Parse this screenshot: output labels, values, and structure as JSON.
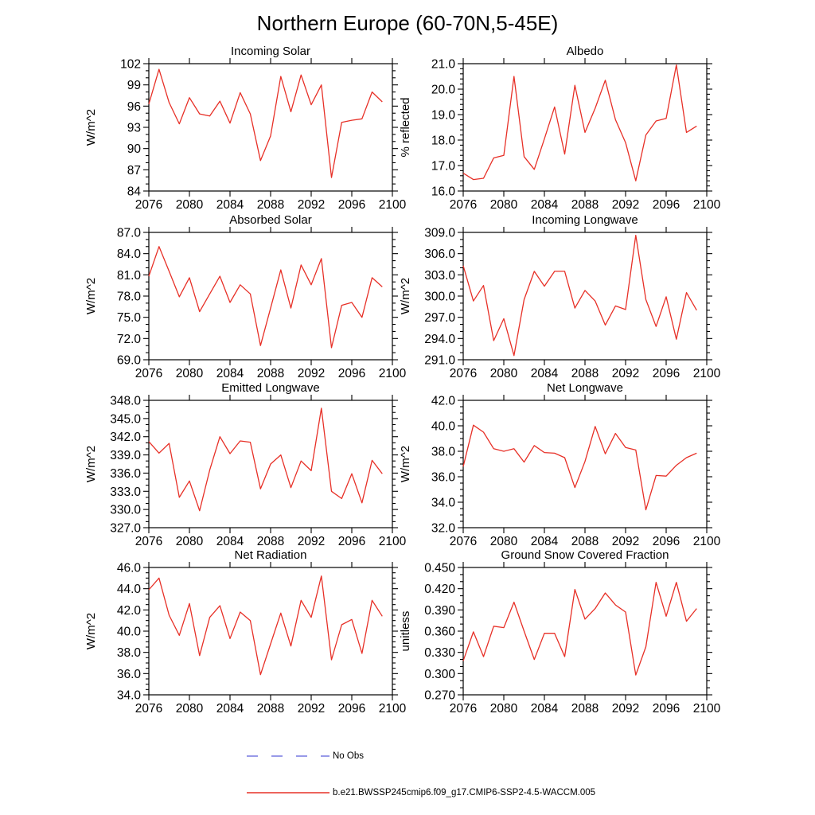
{
  "page_title": "Northern Europe (60-70N,5-45E)",
  "style": {
    "line_color": "#e73027",
    "no_obs_color": "#7678e0",
    "axis_color": "#000000",
    "background": "#ffffff"
  },
  "legend": {
    "entries": [
      {
        "label": "No Obs",
        "color": "#7678e0",
        "line_style": "dashed"
      },
      {
        "label": "b.e21.BWSSP245cmip6.f09_g17.CMIP6-SSP2-4.5-WACCM.005",
        "color": "#e73027",
        "line_style": "solid"
      }
    ]
  },
  "chart_data": [
    {
      "type": "line",
      "title": "Incoming Solar",
      "ylabel": "W/m^2",
      "xlim": [
        2076,
        2100
      ],
      "xticks": [
        2076,
        2080,
        2084,
        2088,
        2092,
        2096,
        2100
      ],
      "ylim": [
        84,
        102
      ],
      "ystep": 3,
      "ydecimals": 0,
      "yminor_divisions": 3,
      "x": [
        2076,
        2077,
        2078,
        2079,
        2080,
        2081,
        2082,
        2083,
        2084,
        2085,
        2086,
        2087,
        2088,
        2089,
        2090,
        2091,
        2092,
        2093,
        2094,
        2095,
        2096,
        2097,
        2098,
        2099
      ],
      "values": [
        96.3,
        101.2,
        96.5,
        93.5,
        97.2,
        94.9,
        94.6,
        96.7,
        93.6,
        97.9,
        94.9,
        88.3,
        91.8,
        100.2,
        95.2,
        100.4,
        96.2,
        99.0,
        85.9,
        93.7,
        94.0,
        94.2,
        98.0,
        96.6
      ]
    },
    {
      "type": "line",
      "title": "Albedo",
      "ylabel": "% reflected",
      "xlim": [
        2076,
        2100
      ],
      "xticks": [
        2076,
        2080,
        2084,
        2088,
        2092,
        2096,
        2100
      ],
      "ylim": [
        16.0,
        21.0
      ],
      "ystep": 1,
      "ydecimals": 1,
      "yminor_divisions": 5,
      "x": [
        2076,
        2077,
        2078,
        2079,
        2080,
        2081,
        2082,
        2083,
        2084,
        2085,
        2086,
        2087,
        2088,
        2089,
        2090,
        2091,
        2092,
        2093,
        2094,
        2095,
        2096,
        2097,
        2098,
        2099
      ],
      "values": [
        16.7,
        16.45,
        16.5,
        17.3,
        17.4,
        20.5,
        17.35,
        16.85,
        18.05,
        19.3,
        17.45,
        20.15,
        18.3,
        19.25,
        20.35,
        18.8,
        17.9,
        16.4,
        18.2,
        18.75,
        18.85,
        20.95,
        18.3,
        18.55
      ]
    },
    {
      "type": "line",
      "title": "Absorbed Solar",
      "ylabel": "W/m^2",
      "xlim": [
        2076,
        2100
      ],
      "xticks": [
        2076,
        2080,
        2084,
        2088,
        2092,
        2096,
        2100
      ],
      "ylim": [
        69.0,
        87.0
      ],
      "ystep": 3,
      "ydecimals": 1,
      "yminor_divisions": 3,
      "x": [
        2076,
        2077,
        2078,
        2079,
        2080,
        2081,
        2082,
        2083,
        2084,
        2085,
        2086,
        2087,
        2088,
        2089,
        2090,
        2091,
        2092,
        2093,
        2094,
        2095,
        2096,
        2097,
        2098,
        2099
      ],
      "values": [
        80.8,
        85.0,
        81.5,
        77.9,
        80.6,
        75.8,
        78.3,
        80.8,
        77.1,
        79.6,
        78.3,
        71.0,
        76.3,
        81.7,
        76.3,
        82.4,
        79.6,
        83.3,
        70.7,
        76.7,
        77.1,
        75.0,
        80.6,
        79.3
      ]
    },
    {
      "type": "line",
      "title": "Incoming Longwave",
      "ylabel": "W/m^2",
      "xlim": [
        2076,
        2100
      ],
      "xticks": [
        2076,
        2080,
        2084,
        2088,
        2092,
        2096,
        2100
      ],
      "ylim": [
        291.0,
        309.0
      ],
      "ystep": 3,
      "ydecimals": 1,
      "yminor_divisions": 3,
      "x": [
        2076,
        2077,
        2078,
        2079,
        2080,
        2081,
        2082,
        2083,
        2084,
        2085,
        2086,
        2087,
        2088,
        2089,
        2090,
        2091,
        2092,
        2093,
        2094,
        2095,
        2096,
        2097,
        2098,
        2099
      ],
      "values": [
        304.3,
        299.3,
        301.5,
        293.7,
        296.8,
        291.6,
        299.5,
        303.5,
        301.4,
        303.5,
        303.5,
        298.3,
        300.8,
        299.3,
        295.9,
        298.6,
        298.1,
        308.6,
        299.5,
        295.7,
        299.9,
        293.9,
        300.5,
        298.0
      ]
    },
    {
      "type": "line",
      "title": "Emitted Longwave",
      "ylabel": "W/m^2",
      "xlim": [
        2076,
        2100
      ],
      "xticks": [
        2076,
        2080,
        2084,
        2088,
        2092,
        2096,
        2100
      ],
      "ylim": [
        327.0,
        348.0
      ],
      "ystep": 3,
      "ydecimals": 1,
      "yminor_divisions": 3,
      "x": [
        2076,
        2077,
        2078,
        2079,
        2080,
        2081,
        2082,
        2083,
        2084,
        2085,
        2086,
        2087,
        2088,
        2089,
        2090,
        2091,
        2092,
        2093,
        2094,
        2095,
        2096,
        2097,
        2098,
        2099
      ],
      "values": [
        341.2,
        339.3,
        340.9,
        332.0,
        334.7,
        329.8,
        336.5,
        342.0,
        339.2,
        341.3,
        341.1,
        333.4,
        337.5,
        339.0,
        333.6,
        338.0,
        336.4,
        346.7,
        333.0,
        331.8,
        335.9,
        331.1,
        338.1,
        335.9
      ]
    },
    {
      "type": "line",
      "title": "Net Longwave",
      "ylabel": "W/m^2",
      "xlim": [
        2076,
        2100
      ],
      "xticks": [
        2076,
        2080,
        2084,
        2088,
        2092,
        2096,
        2100
      ],
      "ylim": [
        32.0,
        42.0
      ],
      "ystep": 2,
      "ydecimals": 1,
      "yminor_divisions": 4,
      "x": [
        2076,
        2077,
        2078,
        2079,
        2080,
        2081,
        2082,
        2083,
        2084,
        2085,
        2086,
        2087,
        2088,
        2089,
        2090,
        2091,
        2092,
        2093,
        2094,
        2095,
        2096,
        2097,
        2098,
        2099
      ],
      "values": [
        36.8,
        40.05,
        39.5,
        38.2,
        38.0,
        38.2,
        37.15,
        38.45,
        37.9,
        37.85,
        37.5,
        35.15,
        37.2,
        39.95,
        37.8,
        39.4,
        38.3,
        38.1,
        33.4,
        36.1,
        36.05,
        36.9,
        37.5,
        37.85
      ]
    },
    {
      "type": "line",
      "title": "Net Radiation",
      "ylabel": "W/m^2",
      "xlim": [
        2076,
        2100
      ],
      "xticks": [
        2076,
        2080,
        2084,
        2088,
        2092,
        2096,
        2100
      ],
      "ylim": [
        34.0,
        46.0
      ],
      "ystep": 2,
      "ydecimals": 1,
      "yminor_divisions": 4,
      "x": [
        2076,
        2077,
        2078,
        2079,
        2080,
        2081,
        2082,
        2083,
        2084,
        2085,
        2086,
        2087,
        2088,
        2089,
        2090,
        2091,
        2092,
        2093,
        2094,
        2095,
        2096,
        2097,
        2098,
        2099
      ],
      "values": [
        43.9,
        45.0,
        41.5,
        39.6,
        42.6,
        37.7,
        41.3,
        42.4,
        39.3,
        41.8,
        41.0,
        35.9,
        38.8,
        41.7,
        38.6,
        42.9,
        41.3,
        45.2,
        37.3,
        40.6,
        41.1,
        37.9,
        42.9,
        41.4
      ]
    },
    {
      "type": "line",
      "title": "Ground Snow Covered Fraction",
      "ylabel": "unitless",
      "xlim": [
        2076,
        2100
      ],
      "xticks": [
        2076,
        2080,
        2084,
        2088,
        2092,
        2096,
        2100
      ],
      "ylim": [
        0.27,
        0.45
      ],
      "ystep": 0.03,
      "ydecimals": 3,
      "yminor_divisions": 3,
      "x": [
        2076,
        2077,
        2078,
        2079,
        2080,
        2081,
        2082,
        2083,
        2084,
        2085,
        2086,
        2087,
        2088,
        2089,
        2090,
        2091,
        2092,
        2093,
        2094,
        2095,
        2096,
        2097,
        2098,
        2099
      ],
      "values": [
        0.318,
        0.359,
        0.324,
        0.367,
        0.365,
        0.401,
        0.36,
        0.32,
        0.357,
        0.357,
        0.324,
        0.419,
        0.377,
        0.392,
        0.414,
        0.397,
        0.387,
        0.298,
        0.338,
        0.429,
        0.381,
        0.429,
        0.374,
        0.392
      ]
    }
  ]
}
